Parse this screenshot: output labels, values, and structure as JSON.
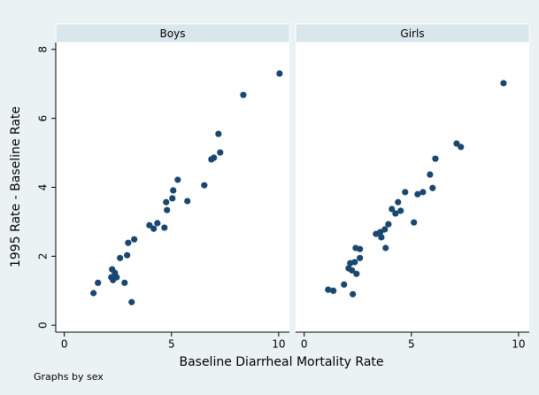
{
  "chart_data": [
    {
      "type": "scatter",
      "title": "Boys",
      "color": "#1a476f",
      "x": [
        1.36,
        1.57,
        3.14,
        2.19,
        2.23,
        2.36,
        2.27,
        2.44,
        2.6,
        2.81,
        2.93,
        2.98,
        3.26,
        3.97,
        4.17,
        4.34,
        4.67,
        4.75,
        4.79,
        5.04,
        5.08,
        5.29,
        5.74,
        6.53,
        6.86,
        6.98,
        7.19,
        7.27,
        8.35,
        10.04
      ],
      "values": [
        0.93,
        1.23,
        0.67,
        1.39,
        1.62,
        1.52,
        1.31,
        1.39,
        1.95,
        1.23,
        2.03,
        2.39,
        2.49,
        2.9,
        2.8,
        2.96,
        2.83,
        3.57,
        3.34,
        3.68,
        3.91,
        4.22,
        3.6,
        4.06,
        4.81,
        4.86,
        5.55,
        5.01,
        6.68,
        7.3
      ],
      "xlim": [
        -0.4,
        10.5
      ],
      "ylim": [
        -0.2,
        8.2
      ],
      "xticks": [
        0,
        5,
        10
      ],
      "yticks": [
        0,
        2,
        4,
        6,
        8
      ]
    },
    {
      "type": "scatter",
      "title": "Girls",
      "color": "#1a476f",
      "x": [
        1.12,
        1.36,
        1.86,
        2.07,
        2.15,
        2.27,
        2.36,
        2.4,
        2.44,
        2.6,
        2.6,
        2.23,
        3.35,
        3.55,
        3.6,
        3.76,
        3.8,
        3.93,
        4.09,
        4.26,
        4.38,
        4.5,
        4.71,
        5.12,
        5.29,
        5.54,
        5.87,
        5.99,
        6.12,
        7.11,
        7.31,
        9.3
      ],
      "values": [
        1.03,
        1.0,
        1.18,
        1.65,
        1.8,
        0.9,
        1.83,
        2.24,
        1.49,
        2.21,
        1.95,
        1.59,
        2.65,
        2.7,
        2.55,
        2.78,
        2.24,
        2.93,
        3.37,
        3.24,
        3.57,
        3.32,
        3.86,
        2.98,
        3.8,
        3.86,
        4.37,
        3.98,
        4.83,
        5.27,
        5.17,
        7.02
      ],
      "xlim": [
        -0.4,
        10.5
      ],
      "ylim": [
        -0.2,
        8.2
      ],
      "xticks": [
        0,
        5,
        10
      ]
    }
  ],
  "xlabel": "Baseline Diarrheal Mortality Rate",
  "ylabel": "1995 Rate - Baseline Rate",
  "note": "Graphs by sex"
}
